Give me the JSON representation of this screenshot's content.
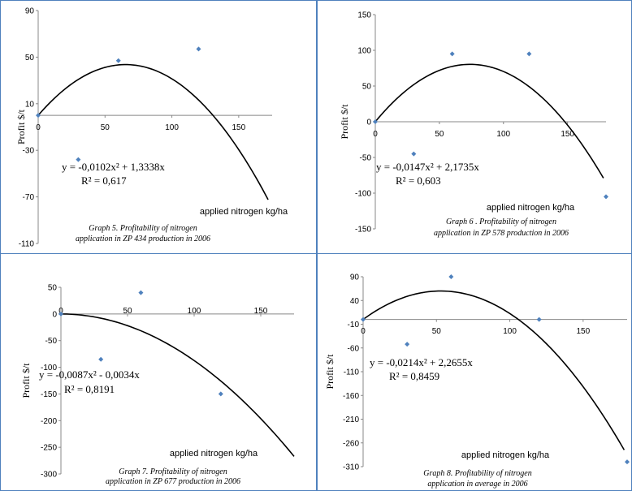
{
  "chart_data": [
    {
      "type": "scatter",
      "title": "",
      "caption": [
        "Graph 5. Profitability of nitrogen",
        "application in ZP 434 production in  2006"
      ],
      "xlabel": "applied nitrogen kg/ha",
      "ylabel": "Profit $/t",
      "xlim": [
        0,
        175
      ],
      "ylim": [
        -110,
        90
      ],
      "yticks": [
        90,
        50,
        10,
        -30,
        -70,
        -110
      ],
      "xticks": [
        0,
        50,
        100,
        150
      ],
      "series": [
        {
          "x": [
            0,
            30,
            60,
            120
          ],
          "y": [
            0,
            -38,
            47,
            57
          ],
          "color": "#4f81bd"
        }
      ],
      "trendline": {
        "a": -0.0102,
        "b": 1.3338,
        "c": 0,
        "x_range": [
          0,
          172
        ],
        "color": "#000000"
      },
      "equation": "y = -0,0102x² + 1,3338x",
      "r2": "R² = 0,617"
    },
    {
      "type": "scatter",
      "title": "",
      "caption": [
        "Graph 6 . Profitability of nitrogen",
        "application in ZP 578 production in  2006"
      ],
      "xlabel": "applied nitrogen kg/ha",
      "ylabel": "Profit $/t",
      "xlim": [
        0,
        180
      ],
      "ylim": [
        -150,
        150
      ],
      "yticks": [
        150,
        100,
        50,
        0,
        -50,
        -100,
        -150
      ],
      "xticks": [
        0,
        50,
        100,
        150
      ],
      "series": [
        {
          "x": [
            0,
            30,
            60,
            120,
            180
          ],
          "y": [
            0,
            -45,
            95,
            95,
            -105
          ],
          "color": "#4f81bd"
        }
      ],
      "trendline": {
        "a": -0.0147,
        "b": 2.1735,
        "c": 0,
        "x_range": [
          0,
          178
        ],
        "color": "#000000"
      },
      "equation": "y = -0,0147x² + 2,1735x",
      "r2": "R² = 0,603"
    },
    {
      "type": "scatter",
      "title": "",
      "caption": [
        "Graph 7. Profitability of nitrogen",
        "application in ZP 677 production in  2006"
      ],
      "xlabel": "applied nitrogen kg/ha",
      "ylabel": "Profit $/t",
      "xlim": [
        0,
        175
      ],
      "ylim": [
        -300,
        50
      ],
      "yticks": [
        50,
        0,
        -50,
        -100,
        -150,
        -200,
        -250,
        -300
      ],
      "xticks": [
        0,
        50,
        100,
        150
      ],
      "series": [
        {
          "x": [
            0,
            30,
            60,
            120
          ],
          "y": [
            0,
            -85,
            40,
            -150
          ],
          "color": "#4f81bd"
        }
      ],
      "trendline": {
        "a": -0.0087,
        "b": -0.0034,
        "c": 0,
        "x_range": [
          0,
          175
        ],
        "color": "#000000"
      },
      "equation": "y = -0,0087x² - 0,0034x",
      "r2": "R² = 0,8191"
    },
    {
      "type": "scatter",
      "title": "",
      "caption": [
        "Graph 8. Profitability of nitrogen",
        "application in average in  2006"
      ],
      "xlabel": "applied nitrogen kg/ha",
      "ylabel": "Profit $/t",
      "xlim": [
        0,
        180
      ],
      "ylim": [
        -310,
        90
      ],
      "yticks": [
        90,
        40,
        -10,
        -60,
        -110,
        -160,
        -210,
        -260,
        -310
      ],
      "xticks": [
        0,
        50,
        100,
        150
      ],
      "series": [
        {
          "x": [
            0,
            30,
            60,
            120,
            180
          ],
          "y": [
            0,
            -52,
            90,
            0,
            -300
          ],
          "color": "#4f81bd"
        }
      ],
      "trendline": {
        "a": -0.0214,
        "b": 2.2655,
        "c": 0,
        "x_range": [
          0,
          178
        ],
        "color": "#000000"
      },
      "equation": "y = -0,0214x² + 2,2655x",
      "r2": "R² = 0,8459"
    }
  ]
}
